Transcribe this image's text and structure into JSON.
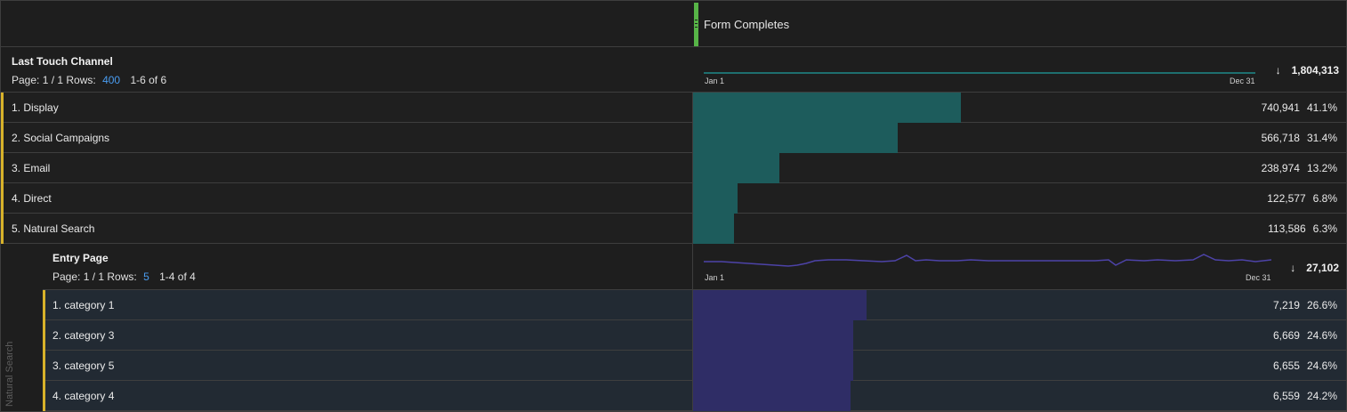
{
  "metric_header": {
    "label": "Form Completes",
    "accent_color": "#57b447"
  },
  "dimensions": [
    {
      "title": "Last Touch Channel",
      "page_label": "Page: 1 / 1 Rows:",
      "rows_value": "400",
      "range": "1-6 of 6",
      "spark_start": "Jan 1",
      "spark_end": "Dec 31",
      "total": "1,804,313",
      "sort_icon": "sort-desc-icon",
      "spark_color": "#1e8a8a",
      "bar_color": "#1d5c5c",
      "rows": [
        {
          "label": "1.  Display",
          "value": "740,941",
          "pct": "41.1%",
          "share": 0.411
        },
        {
          "label": "2.  Social Campaigns",
          "value": "566,718",
          "pct": "31.4%",
          "share": 0.314
        },
        {
          "label": "3.  Email",
          "value": "238,974",
          "pct": "13.2%",
          "share": 0.132
        },
        {
          "label": "4.  Direct",
          "value": "122,577",
          "pct": "6.8%",
          "share": 0.068
        },
        {
          "label": "5.  Natural Search",
          "value": "113,586",
          "pct": "6.3%",
          "share": 0.063
        }
      ]
    },
    {
      "title": "Entry Page",
      "page_label": "Page: 1 / 1 Rows:",
      "rows_value": "5",
      "range": "1-4 of 4",
      "spark_start": "Jan 1",
      "spark_end": "Dec 31",
      "total": "27,102",
      "sort_icon": "sort-desc-icon",
      "spark_color": "#4d43a8",
      "bar_color": "#2f2d66",
      "rows": [
        {
          "label": "1.  category 1",
          "value": "7,219",
          "pct": "26.6%",
          "share": 0.266
        },
        {
          "label": "2.  category 3",
          "value": "6,669",
          "pct": "24.6%",
          "share": 0.246
        },
        {
          "label": "3.  category 5",
          "value": "6,655",
          "pct": "24.6%",
          "share": 0.246
        },
        {
          "label": "4.  category 4",
          "value": "6,559",
          "pct": "24.2%",
          "share": 0.242
        }
      ]
    }
  ],
  "breakdown_parent": "Natural Search",
  "colors": {
    "row_accent": "#d8b22a",
    "link_blue": "#4a9cf0",
    "nested_row_bg": "#222a33"
  }
}
